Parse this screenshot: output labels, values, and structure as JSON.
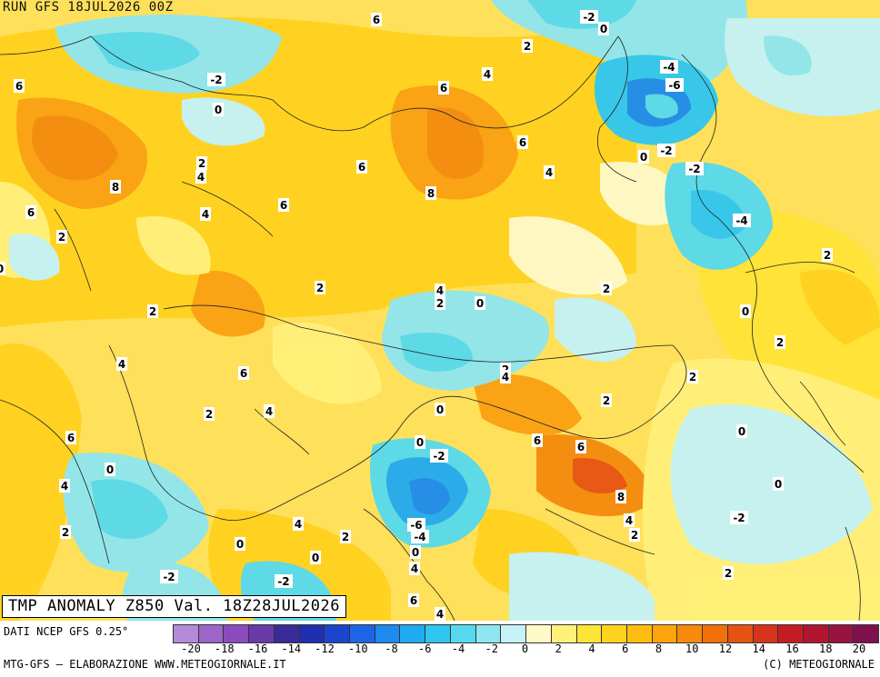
{
  "header": {
    "run_text": "RUN GFS 18JUL2026 00Z"
  },
  "title": "TMP ANOMALY Z850 Val. 18Z28JUL2026",
  "source": "DATI NCEP GFS 0.25°",
  "credit_left": "MTG-GFS — ELABORAZIONE WWW.METEOGIORNALE.IT",
  "credit_right": "(C) METEOGIORNALE",
  "legend": {
    "colors": [
      "#b48ad8",
      "#9b66c8",
      "#8a4cbc",
      "#6a3aa8",
      "#3b2a9a",
      "#1f2fb0",
      "#1b44cf",
      "#1e64e6",
      "#1c8aee",
      "#20aaf0",
      "#2ec6f0",
      "#56d9ee",
      "#8ee6f0",
      "#c4f2f6",
      "#fff9c8",
      "#fff07a",
      "#ffe438",
      "#ffd21e",
      "#ffbd10",
      "#fda40c",
      "#f78a0a",
      "#f0700a",
      "#e65212",
      "#d8341a",
      "#c41c22",
      "#b01630",
      "#981440",
      "#80104e"
    ],
    "ticks": [
      "-20",
      "-18",
      "-16",
      "-14",
      "-12",
      "-10",
      "-8",
      "-6",
      "-4",
      "-2",
      "0",
      "2",
      "4",
      "6",
      "8",
      "10",
      "12",
      "14",
      "16",
      "18",
      "20"
    ]
  },
  "map": {
    "values": [
      {
        "t": "6"
      },
      {
        "t": "-2"
      },
      {
        "t": "0"
      },
      {
        "t": "2"
      },
      {
        "t": "4"
      },
      {
        "t": "6"
      },
      {
        "t": "-2"
      },
      {
        "t": "0"
      },
      {
        "t": "-4"
      },
      {
        "t": "-6"
      },
      {
        "t": "6"
      },
      {
        "t": "8"
      },
      {
        "t": "6"
      },
      {
        "t": "4"
      },
      {
        "t": "0"
      },
      {
        "t": "-2"
      },
      {
        "t": "-2"
      },
      {
        "t": "-4"
      },
      {
        "t": "6"
      },
      {
        "t": "2"
      },
      {
        "t": "4"
      },
      {
        "t": "8"
      },
      {
        "t": "6"
      },
      {
        "t": "4"
      },
      {
        "t": "6"
      },
      {
        "t": "2"
      },
      {
        "t": "0"
      },
      {
        "t": "2"
      },
      {
        "t": "2"
      },
      {
        "t": "4"
      },
      {
        "t": "2"
      },
      {
        "t": "0"
      },
      {
        "t": "2"
      },
      {
        "t": "0"
      },
      {
        "t": "2"
      },
      {
        "t": "4"
      },
      {
        "t": "6"
      },
      {
        "t": "2"
      },
      {
        "t": "2"
      },
      {
        "t": "4"
      },
      {
        "t": "2"
      },
      {
        "t": "0"
      },
      {
        "t": "2"
      },
      {
        "t": "4"
      },
      {
        "t": "2"
      },
      {
        "t": "4"
      },
      {
        "t": "6"
      },
      {
        "t": "6"
      },
      {
        "t": "0"
      },
      {
        "t": "0"
      },
      {
        "t": "6"
      },
      {
        "t": "0"
      },
      {
        "t": "-2"
      },
      {
        "t": "6"
      },
      {
        "t": "6"
      },
      {
        "t": "0"
      },
      {
        "t": "4"
      },
      {
        "t": "8"
      },
      {
        "t": "0"
      },
      {
        "t": "-2"
      },
      {
        "t": "2"
      },
      {
        "t": "4"
      },
      {
        "t": "-6"
      },
      {
        "t": "-4"
      },
      {
        "t": "4"
      },
      {
        "t": "2"
      },
      {
        "t": "2"
      },
      {
        "t": "0"
      },
      {
        "t": "0"
      },
      {
        "t": "-2"
      },
      {
        "t": "4"
      },
      {
        "t": "-2"
      },
      {
        "t": "-2"
      },
      {
        "t": "6"
      },
      {
        "t": "4"
      },
      {
        "t": "2"
      },
      {
        "t": "0"
      }
    ]
  }
}
